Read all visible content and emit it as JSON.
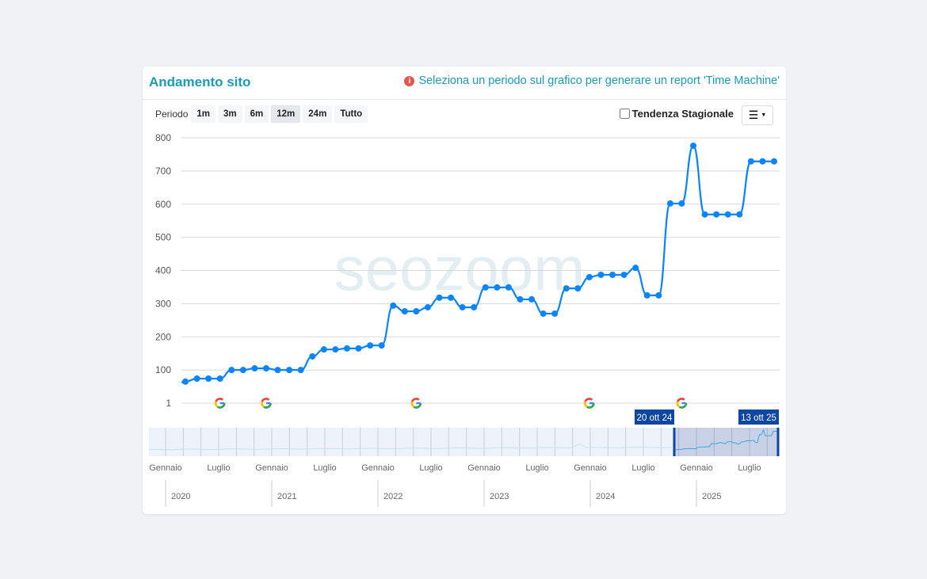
{
  "header": {
    "title": "Andamento sito",
    "notice": "Seleziona un periodo sul grafico per generare un report 'Time Machine'",
    "notice_icon": "info-icon"
  },
  "toolbar": {
    "period_label": "Periodo",
    "periods": [
      "1m",
      "3m",
      "6m",
      "12m",
      "24m",
      "Tutto"
    ],
    "active_period": "12m",
    "seasonal_label": "Tendenza Stagionale",
    "seasonal_checked": false,
    "menu_icon": "hamburger-icon"
  },
  "watermark": "seozoom",
  "colors": {
    "line": "#0a84ff",
    "accent": "#1a9bb8",
    "navigator_flag": "#0d47a1"
  },
  "chart_data": {
    "type": "line",
    "ylim": [
      1,
      800
    ],
    "y_ticks": [
      "1",
      "100",
      "200",
      "300",
      "400",
      "500",
      "600",
      "700",
      "800"
    ],
    "grid": true,
    "values": [
      65,
      74,
      74,
      74,
      100,
      100,
      105,
      105,
      100,
      100,
      100,
      141,
      162,
      162,
      165,
      165,
      174,
      174,
      294,
      277,
      277,
      289,
      318,
      318,
      289,
      289,
      349,
      349,
      349,
      313,
      313,
      270,
      270,
      346,
      346,
      380,
      387,
      387,
      387,
      408,
      325,
      325,
      602,
      602,
      776,
      569,
      569,
      569,
      569,
      729,
      729,
      729
    ],
    "google_update_markers": [
      3,
      7,
      20,
      35,
      43
    ],
    "navigator": {
      "range_start_label": "20 ott 24",
      "range_end_label": "13 ott 25",
      "month_labels": [
        "Gennaio",
        "Luglio",
        "Gennaio",
        "Luglio",
        "Gennaio",
        "Luglio",
        "Gennaio",
        "Luglio",
        "Gennaio",
        "Luglio",
        "Gennaio",
        "Luglio"
      ],
      "year_labels": [
        "2020",
        "2021",
        "2022",
        "2023",
        "2024",
        "2025"
      ]
    }
  }
}
